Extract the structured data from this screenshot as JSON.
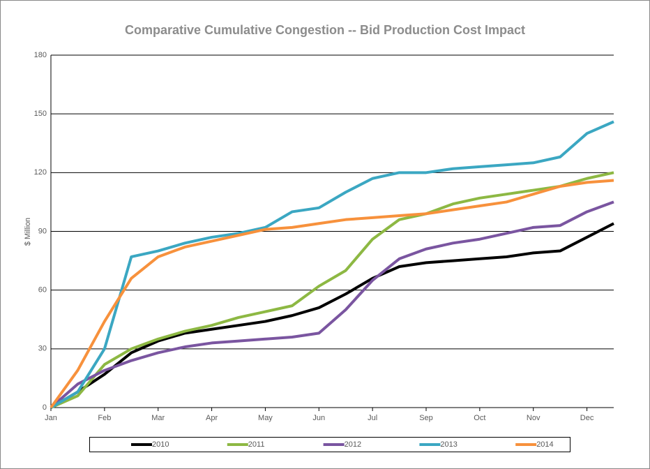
{
  "chart_data": {
    "type": "line",
    "title": "Comparative Cumulative Congestion -- Bid Production Cost Impact",
    "y_label": "$ Million",
    "categories": [
      "Jan",
      null,
      "Feb",
      null,
      "Mar",
      null,
      "Apr",
      null,
      "May",
      null,
      "Jun",
      null,
      "Jul",
      null,
      "Sep",
      null,
      "Oct",
      null,
      "Nov",
      null,
      "Dec",
      null
    ],
    "series": [
      {
        "name": "2010",
        "color": "#000000",
        "values": [
          0,
          8,
          17,
          28,
          34,
          38,
          40,
          42,
          44,
          47,
          51,
          58,
          66,
          72,
          74,
          75,
          76,
          77,
          79,
          80,
          87,
          94
        ]
      },
      {
        "name": "2011",
        "color": "#8db843",
        "values": [
          0,
          6,
          22,
          30,
          35,
          39,
          42,
          46,
          49,
          52,
          62,
          70,
          86,
          96,
          99,
          104,
          107,
          109,
          111,
          113,
          117,
          120
        ]
      },
      {
        "name": "2012",
        "color": "#7a55a0",
        "values": [
          0,
          12,
          19,
          24,
          28,
          31,
          33,
          34,
          35,
          36,
          38,
          50,
          65,
          76,
          81,
          84,
          86,
          89,
          92,
          93,
          100,
          105
        ]
      },
      {
        "name": "2013",
        "color": "#3ba7c2",
        "values": [
          0,
          8,
          30,
          77,
          80,
          84,
          87,
          89,
          92,
          100,
          102,
          110,
          117,
          120,
          120,
          122,
          123,
          124,
          125,
          128,
          140,
          146
        ]
      },
      {
        "name": "2014",
        "color": "#f7913c",
        "values": [
          0,
          19,
          44,
          66,
          77,
          82,
          85,
          88,
          91,
          92,
          94,
          96,
          97,
          98,
          99,
          101,
          103,
          105,
          109,
          113,
          115,
          116
        ]
      }
    ],
    "ylim": [
      0,
      180
    ],
    "yticks": [
      0,
      30,
      60,
      90,
      120,
      150,
      180
    ],
    "grid": true,
    "legend": "bottom"
  }
}
